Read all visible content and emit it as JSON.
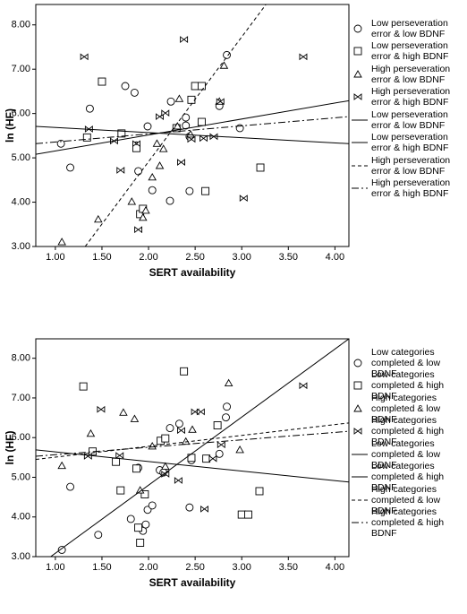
{
  "chart_data": [
    {
      "type": "scatter",
      "x_label": "SERT availability",
      "y_label": "ln (HF)",
      "xlim": [
        0.79,
        4.15
      ],
      "ylim": [
        3.0,
        8.46
      ],
      "xticks": [
        {
          "value": 1,
          "label": "1.00"
        },
        {
          "value": 1.5,
          "label": "1.50"
        },
        {
          "value": 2,
          "label": "2.00"
        },
        {
          "value": 2.5,
          "label": "2.50"
        },
        {
          "value": 3,
          "label": "3.00"
        },
        {
          "value": 3.5,
          "label": "3.50"
        },
        {
          "value": 4,
          "label": "4.00"
        }
      ],
      "yticks": [
        {
          "value": 3,
          "label": "3.00"
        },
        {
          "value": 4,
          "label": "4.00"
        },
        {
          "value": 5,
          "label": "5.00"
        },
        {
          "value": 6,
          "label": "6.00"
        },
        {
          "value": 7,
          "label": "7.00"
        },
        {
          "value": 8,
          "label": "8.00"
        }
      ],
      "series": [
        {
          "name": "Low perseveration error & low BDNF",
          "type": "scatter",
          "marker": "circle",
          "color": "#000000",
          "x": [
            1.06,
            1.16,
            1.37,
            1.75,
            1.85,
            1.87,
            1.89,
            1.99,
            2.04,
            2.23,
            2.24,
            2.4,
            2.4,
            2.44,
            2.44,
            2.76,
            2.84,
            2.98
          ],
          "values": [
            5.32,
            4.78,
            6.11,
            6.62,
            6.47,
            5.28,
            4.7,
            5.71,
            4.27,
            4.03,
            6.27,
            5.91,
            5.73,
            4.25,
            5.48,
            6.17,
            7.32,
            5.67
          ]
        },
        {
          "name": "Low perseveration error & high BDNF",
          "type": "scatter",
          "marker": "square",
          "color": "#000000",
          "x": [
            1.34,
            1.5,
            1.71,
            1.87,
            1.91,
            1.94,
            2.3,
            2.46,
            2.5,
            2.57,
            2.57,
            2.61,
            3.2
          ],
          "values": [
            5.46,
            6.72,
            5.55,
            5.22,
            3.73,
            3.85,
            5.67,
            6.31,
            6.62,
            6.62,
            5.81,
            4.25,
            4.78
          ]
        },
        {
          "name": "High perseveration error & low BDNF",
          "type": "scatter",
          "marker": "triangle",
          "color": "#000000",
          "x": [
            1.07,
            1.46,
            1.82,
            1.94,
            1.97,
            2.04,
            2.09,
            2.12,
            2.16,
            2.31,
            2.33,
            2.45,
            2.76,
            2.81
          ],
          "values": [
            3.1,
            3.61,
            4.01,
            3.65,
            3.81,
            4.56,
            5.32,
            4.82,
            5.2,
            5.71,
            6.33,
            5.53,
            6.27,
            7.08
          ]
        },
        {
          "name": "High perseveration error & high BDNF",
          "type": "scatter",
          "marker": "bowtie",
          "color": "#000000",
          "x": [
            1.31,
            1.36,
            1.63,
            1.7,
            1.87,
            1.89,
            2.12,
            2.18,
            2.35,
            2.38,
            2.46,
            2.59,
            2.7,
            2.77,
            3.02,
            3.66
          ],
          "values": [
            7.28,
            5.65,
            5.38,
            4.72,
            5.32,
            3.38,
            5.93,
            6.01,
            4.9,
            7.67,
            5.42,
            5.44,
            5.48,
            6.27,
            4.09,
            7.28
          ]
        },
        {
          "name": "Low perseveration error & low BDNF",
          "type": "line",
          "dash": "solid",
          "color": "#000000",
          "x": [
            0.79,
            4.15
          ],
          "values": [
            5.08,
            6.29
          ]
        },
        {
          "name": "Low perseveration error & high BDNF",
          "type": "line",
          "dash": "solid",
          "color": "#000000",
          "x": [
            0.79,
            4.15
          ],
          "values": [
            5.71,
            5.32
          ]
        },
        {
          "name": "High perseveration error & low BDNF",
          "type": "line",
          "dash": "dashed",
          "color": "#000000",
          "x": [
            1.32,
            3.26
          ],
          "values": [
            3.0,
            8.46
          ]
        },
        {
          "name": "High perseveration error & high BDNF",
          "type": "line",
          "dash": "dashdot",
          "color": "#000000",
          "x": [
            0.79,
            4.15
          ],
          "values": [
            5.32,
            5.93
          ]
        }
      ]
    },
    {
      "type": "scatter",
      "x_label": "SERT availability",
      "y_label": "ln (HF)",
      "xlim": [
        0.79,
        4.15
      ],
      "ylim": [
        3.0,
        8.49
      ],
      "xticks": [
        {
          "value": 1,
          "label": "1.00"
        },
        {
          "value": 1.5,
          "label": "1.50"
        },
        {
          "value": 2,
          "label": "2.00"
        },
        {
          "value": 2.5,
          "label": "2.50"
        },
        {
          "value": 3,
          "label": "3.00"
        },
        {
          "value": 3.5,
          "label": "3.50"
        },
        {
          "value": 4,
          "label": "4.00"
        }
      ],
      "yticks": [
        {
          "value": 3,
          "label": "3.00"
        },
        {
          "value": 4,
          "label": "4.00"
        },
        {
          "value": 5,
          "label": "5.00"
        },
        {
          "value": 6,
          "label": "6.00"
        },
        {
          "value": 7,
          "label": "7.00"
        },
        {
          "value": 8,
          "label": "8.00"
        }
      ],
      "series": [
        {
          "name": "Low categories completed & low BDNF",
          "type": "scatter",
          "marker": "circle",
          "color": "#000000",
          "x": [
            1.07,
            1.16,
            1.46,
            1.81,
            1.89,
            1.94,
            1.97,
            1.99,
            2.04,
            2.12,
            2.16,
            2.23,
            2.33,
            2.44,
            2.46,
            2.76,
            2.83,
            2.84
          ],
          "values": [
            3.17,
            4.76,
            3.55,
            3.95,
            5.24,
            3.65,
            3.81,
            4.18,
            4.29,
            5.18,
            5.12,
            6.24,
            6.35,
            4.24,
            5.43,
            5.59,
            6.51,
            6.78
          ]
        },
        {
          "name": "Low categories completed & high BDNF",
          "type": "scatter",
          "marker": "square",
          "color": "#000000",
          "x": [
            1.3,
            1.4,
            1.65,
            1.7,
            1.87,
            1.89,
            1.91,
            1.96,
            2.13,
            2.18,
            2.38,
            2.46,
            2.62,
            2.74,
            3.0,
            3.07,
            3.19
          ],
          "values": [
            7.29,
            5.65,
            5.39,
            4.67,
            5.22,
            3.73,
            3.35,
            4.57,
            5.92,
            5.98,
            7.67,
            5.49,
            5.47,
            6.31,
            4.06,
            4.06,
            4.65
          ]
        },
        {
          "name": "High categories completed & low BDNF",
          "type": "scatter",
          "marker": "triangle",
          "color": "#000000",
          "x": [
            1.07,
            1.38,
            1.73,
            1.85,
            1.91,
            2.04,
            2.18,
            2.4,
            2.47,
            2.86,
            2.98
          ],
          "values": [
            5.29,
            6.1,
            6.63,
            6.47,
            4.67,
            5.78,
            5.27,
            5.9,
            6.2,
            7.37,
            5.69
          ]
        },
        {
          "name": "High categories completed & high BDNF",
          "type": "scatter",
          "marker": "bowtie",
          "color": "#000000",
          "x": [
            1.35,
            1.49,
            1.69,
            2.18,
            2.32,
            2.35,
            2.5,
            2.56,
            2.6,
            2.69,
            2.78,
            3.66
          ],
          "values": [
            5.53,
            6.71,
            5.55,
            5.08,
            4.92,
            6.18,
            6.65,
            6.65,
            4.2,
            5.47,
            5.82,
            7.31
          ]
        },
        {
          "name": "Low categories completed & low BDNF",
          "type": "line",
          "dash": "solid",
          "color": "#000000",
          "x": [
            0.95,
            4.15
          ],
          "values": [
            3.0,
            8.49
          ]
        },
        {
          "name": "Low categories completed & high BDNF",
          "type": "line",
          "dash": "solid",
          "color": "#000000",
          "x": [
            0.79,
            4.15
          ],
          "values": [
            5.69,
            4.88
          ]
        },
        {
          "name": "High categories completed & low BDNF",
          "type": "line",
          "dash": "dashed",
          "color": "#000000",
          "x": [
            0.79,
            4.15
          ],
          "values": [
            5.45,
            6.37
          ]
        },
        {
          "name": "High categories completed & high BDNF",
          "type": "line",
          "dash": "dashdot",
          "color": "#000000",
          "x": [
            0.79,
            4.15
          ],
          "values": [
            5.53,
            6.16
          ]
        }
      ]
    }
  ]
}
